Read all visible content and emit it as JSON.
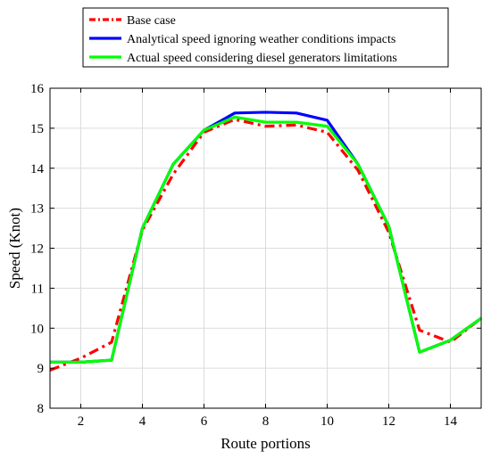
{
  "chart_data": {
    "type": "line",
    "title": "",
    "xlabel": "Route portions",
    "ylabel": "Speed (Knot)",
    "xlim": [
      1,
      15
    ],
    "ylim": [
      8,
      16
    ],
    "xticks": [
      2,
      4,
      6,
      8,
      10,
      12,
      14
    ],
    "yticks": [
      8,
      9,
      10,
      11,
      12,
      13,
      14,
      15,
      16
    ],
    "grid": true,
    "legend_position": "top-center",
    "x": [
      1,
      2,
      3,
      4,
      5,
      6,
      7,
      8,
      9,
      10,
      11,
      12,
      13,
      14,
      15
    ],
    "series": [
      {
        "name": "Base case",
        "color": "#ff0000",
        "style": "dashdot",
        "values": [
          8.95,
          9.25,
          9.65,
          12.45,
          13.85,
          14.9,
          15.22,
          15.05,
          15.08,
          14.9,
          13.95,
          12.4,
          9.95,
          9.65,
          10.25
        ]
      },
      {
        "name": "Analytical speed ignoring weather conditions impacts",
        "color": "#0000ff",
        "style": "solid",
        "values": [
          9.15,
          9.15,
          9.2,
          12.5,
          14.1,
          14.95,
          15.38,
          15.4,
          15.38,
          15.2,
          14.1,
          12.55,
          9.4,
          9.7,
          10.25
        ]
      },
      {
        "name": "Actual speed considering diesel generators limitations",
        "color": "#00ff00",
        "style": "solid",
        "values": [
          9.15,
          9.15,
          9.2,
          12.5,
          14.1,
          14.95,
          15.28,
          15.15,
          15.15,
          15.05,
          14.1,
          12.55,
          9.4,
          9.7,
          10.25
        ]
      }
    ]
  }
}
